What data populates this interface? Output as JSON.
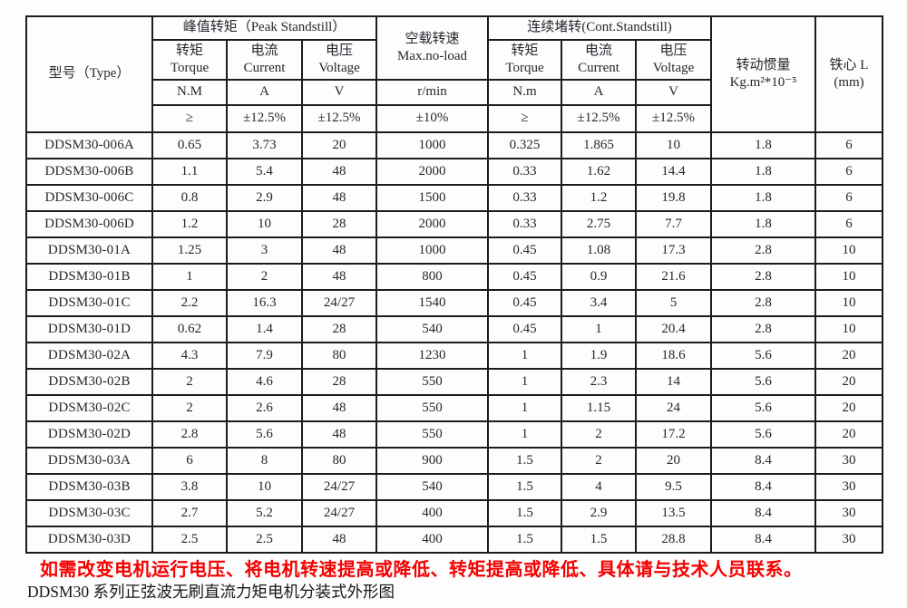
{
  "table": {
    "header": {
      "type": "型号（Type）",
      "peak_group": "峰值转矩（Peak Standstill）",
      "noload_line1": "空载转速",
      "noload_line2": "Max.no-load",
      "cont_group": "连续堵转(Cont.Standstill)",
      "inertia_line1": "转动惯量",
      "inertia_line2": "Kg.m²*10⁻⁵",
      "core_line1": "铁心 L",
      "core_line2": "(mm)",
      "torque_cn": "转矩",
      "torque_en": "Torque",
      "current_cn": "电流",
      "current_en": "Current",
      "voltage_cn": "电压",
      "voltage_en": "Voltage",
      "peak_torque_unit": "N.M",
      "cont_torque_unit": "N.m",
      "current_unit": "A",
      "voltage_unit": "V",
      "speed_unit": "r/min",
      "gte_symbol": "≥",
      "tol_12_5": "±12.5%",
      "tol_10": "±10%"
    },
    "rows": [
      {
        "model": "DDSM30-006A",
        "peak_torque": "0.65",
        "peak_current": "3.73",
        "peak_voltage": "20",
        "noload_speed": "1000",
        "cont_torque": "0.325",
        "cont_current": "1.865",
        "cont_voltage": "10",
        "inertia": "1.8",
        "core_l": "6"
      },
      {
        "model": "DDSM30-006B",
        "peak_torque": "1.1",
        "peak_current": "5.4",
        "peak_voltage": "48",
        "noload_speed": "2000",
        "cont_torque": "0.33",
        "cont_current": "1.62",
        "cont_voltage": "14.4",
        "inertia": "1.8",
        "core_l": "6"
      },
      {
        "model": "DDSM30-006C",
        "peak_torque": "0.8",
        "peak_current": "2.9",
        "peak_voltage": "48",
        "noload_speed": "1500",
        "cont_torque": "0.33",
        "cont_current": "1.2",
        "cont_voltage": "19.8",
        "inertia": "1.8",
        "core_l": "6"
      },
      {
        "model": "DDSM30-006D",
        "peak_torque": "1.2",
        "peak_current": "10",
        "peak_voltage": "28",
        "noload_speed": "2000",
        "cont_torque": "0.33",
        "cont_current": "2.75",
        "cont_voltage": "7.7",
        "inertia": "1.8",
        "core_l": "6"
      },
      {
        "model": "DDSM30-01A",
        "peak_torque": "1.25",
        "peak_current": "3",
        "peak_voltage": "48",
        "noload_speed": "1000",
        "cont_torque": "0.45",
        "cont_current": "1.08",
        "cont_voltage": "17.3",
        "inertia": "2.8",
        "core_l": "10"
      },
      {
        "model": "DDSM30-01B",
        "peak_torque": "1",
        "peak_current": "2",
        "peak_voltage": "48",
        "noload_speed": "800",
        "cont_torque": "0.45",
        "cont_current": "0.9",
        "cont_voltage": "21.6",
        "inertia": "2.8",
        "core_l": "10"
      },
      {
        "model": "DDSM30-01C",
        "peak_torque": "2.2",
        "peak_current": "16.3",
        "peak_voltage": "24/27",
        "noload_speed": "1540",
        "cont_torque": "0.45",
        "cont_current": "3.4",
        "cont_voltage": "5",
        "inertia": "2.8",
        "core_l": "10"
      },
      {
        "model": "DDSM30-01D",
        "peak_torque": "0.62",
        "peak_current": "1.4",
        "peak_voltage": "28",
        "noload_speed": "540",
        "cont_torque": "0.45",
        "cont_current": "1",
        "cont_voltage": "20.4",
        "inertia": "2.8",
        "core_l": "10"
      },
      {
        "model": "DDSM30-02A",
        "peak_torque": "4.3",
        "peak_current": "7.9",
        "peak_voltage": "80",
        "noload_speed": "1230",
        "cont_torque": "1",
        "cont_current": "1.9",
        "cont_voltage": "18.6",
        "inertia": "5.6",
        "core_l": "20"
      },
      {
        "model": "DDSM30-02B",
        "peak_torque": "2",
        "peak_current": "4.6",
        "peak_voltage": "28",
        "noload_speed": "550",
        "cont_torque": "1",
        "cont_current": "2.3",
        "cont_voltage": "14",
        "inertia": "5.6",
        "core_l": "20"
      },
      {
        "model": "DDSM30-02C",
        "peak_torque": "2",
        "peak_current": "2.6",
        "peak_voltage": "48",
        "noload_speed": "550",
        "cont_torque": "1",
        "cont_current": "1.15",
        "cont_voltage": "24",
        "inertia": "5.6",
        "core_l": "20"
      },
      {
        "model": "DDSM30-02D",
        "peak_torque": "2.8",
        "peak_current": "5.6",
        "peak_voltage": "48",
        "noload_speed": "550",
        "cont_torque": "1",
        "cont_current": "2",
        "cont_voltage": "17.2",
        "inertia": "5.6",
        "core_l": "20"
      },
      {
        "model": "DDSM30-03A",
        "peak_torque": "6",
        "peak_current": "8",
        "peak_voltage": "80",
        "noload_speed": "900",
        "cont_torque": "1.5",
        "cont_current": "2",
        "cont_voltage": "20",
        "inertia": "8.4",
        "core_l": "30"
      },
      {
        "model": "DDSM30-03B",
        "peak_torque": "3.8",
        "peak_current": "10",
        "peak_voltage": "24/27",
        "noload_speed": "540",
        "cont_torque": "1.5",
        "cont_current": "4",
        "cont_voltage": "9.5",
        "inertia": "8.4",
        "core_l": "30"
      },
      {
        "model": "DDSM30-03C",
        "peak_torque": "2.7",
        "peak_current": "5.2",
        "peak_voltage": "24/27",
        "noload_speed": "400",
        "cont_torque": "1.5",
        "cont_current": "2.9",
        "cont_voltage": "13.5",
        "inertia": "8.4",
        "core_l": "30"
      },
      {
        "model": "DDSM30-03D",
        "peak_torque": "2.5",
        "peak_current": "2.5",
        "peak_voltage": "48",
        "noload_speed": "400",
        "cont_torque": "1.5",
        "cont_current": "1.5",
        "cont_voltage": "28.8",
        "inertia": "8.4",
        "core_l": "30"
      }
    ]
  },
  "footer": {
    "red_note": "如需改变电机运行电压、将电机转速提高或降低、转矩提高或降低、具体请与技术人员联系。",
    "caption": "DDSM30 系列正弦波无刷直流力矩电机分装式外形图"
  },
  "colors": {
    "note_red": "#f40000",
    "grid_black": "#1c1c1c"
  }
}
